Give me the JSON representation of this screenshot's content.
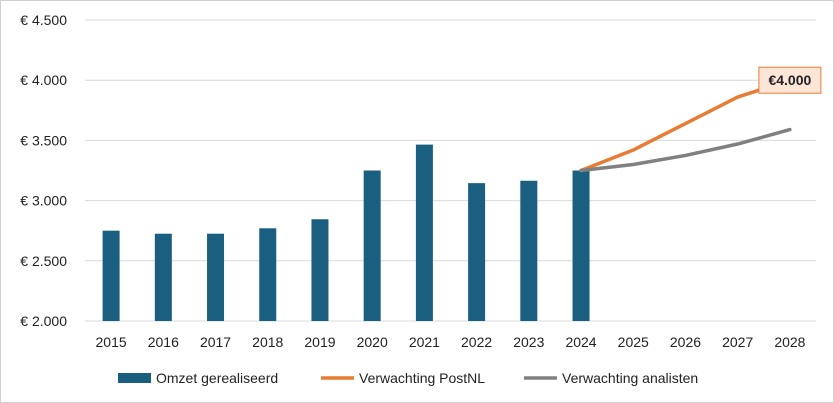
{
  "chart_data": {
    "type": "bar",
    "categories": [
      "2015",
      "2016",
      "2017",
      "2018",
      "2019",
      "2020",
      "2021",
      "2022",
      "2023",
      "2024",
      "2025",
      "2026",
      "2027",
      "2028"
    ],
    "ylim": [
      2000,
      4500
    ],
    "yticks": [
      2000,
      2500,
      3000,
      3500,
      4000,
      4500
    ],
    "ytick_labels": [
      "€ 2.000",
      "€ 2.500",
      "€ 3.000",
      "€ 3.500",
      "€ 4.000",
      "€ 4.500"
    ],
    "grid": true,
    "legend_position": "bottom",
    "series": [
      {
        "name": "Omzet gerealiseerd",
        "type": "bar",
        "color": "#1a5e80",
        "values": [
          2750,
          2725,
          2725,
          2770,
          2845,
          3250,
          3465,
          3145,
          3165,
          3250,
          null,
          null,
          null,
          null
        ]
      },
      {
        "name": "Verwachting PostNL",
        "type": "line",
        "color": "#e97c34",
        "values": [
          null,
          null,
          null,
          null,
          null,
          null,
          null,
          null,
          null,
          3250,
          3420,
          3640,
          3860,
          4000
        ]
      },
      {
        "name": "Verwachting analisten",
        "type": "line",
        "color": "#808080",
        "values": [
          null,
          null,
          null,
          null,
          null,
          null,
          null,
          null,
          null,
          3250,
          3300,
          3375,
          3470,
          3590
        ]
      }
    ],
    "annotation": {
      "text": "€4.000",
      "x": "2028",
      "y": 4000,
      "border_color": "#e97c34",
      "fill_color": "#fde6d8"
    }
  }
}
